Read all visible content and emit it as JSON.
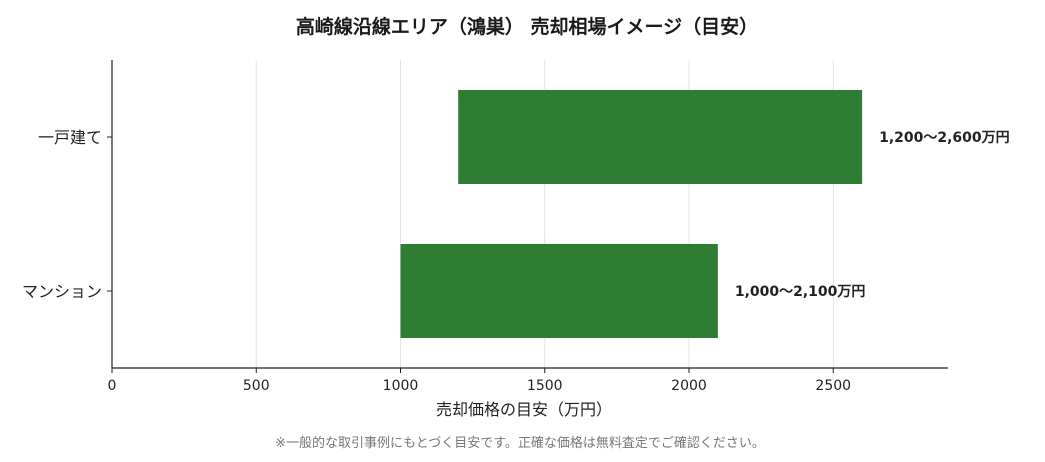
{
  "chart_data": {
    "type": "bar",
    "orientation": "horizontal",
    "style": "floating-range",
    "title": "高崎線沿線エリア（鴻巣） 売却相場イメージ（目安）",
    "xlabel": "売却価格の目安（万円）",
    "ylabel": "",
    "xlim": [
      0,
      2900
    ],
    "xticks": [
      0,
      500,
      1000,
      1500,
      2000,
      2500
    ],
    "grid": "vertical",
    "bar_color": "#2e7d32",
    "categories": [
      "一戸建て",
      "マンション"
    ],
    "ranges": [
      {
        "category": "一戸建て",
        "low": 1200,
        "high": 2600,
        "label": "1,200〜2,600万円"
      },
      {
        "category": "マンション",
        "low": 1000,
        "high": 2100,
        "label": "1,000〜2,100万円"
      }
    ]
  },
  "footnote": "※一般的な取引事例にもとづく目安です。正確な価格は無料査定でご確認ください。"
}
